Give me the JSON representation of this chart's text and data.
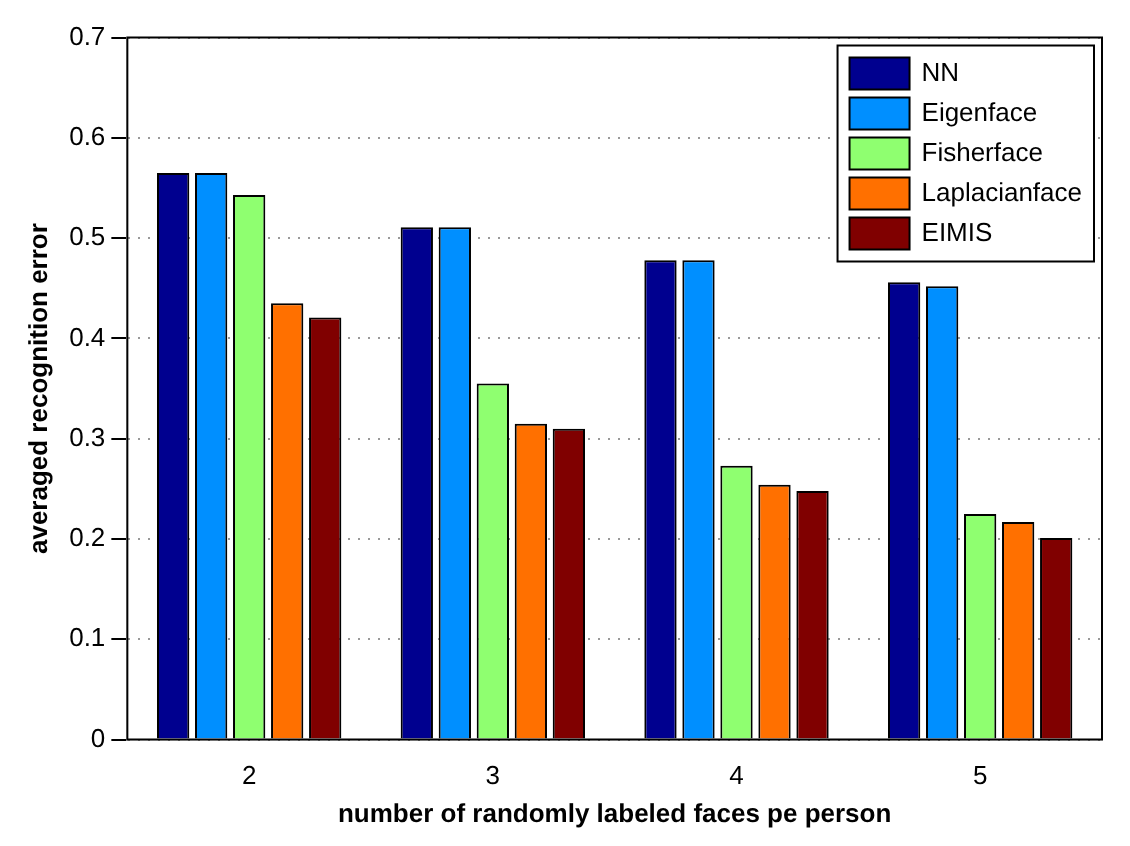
{
  "chart_data": {
    "type": "bar",
    "xlabel": "number of randomly labeled faces pe person",
    "ylabel": "averaged recognition error",
    "categories": [
      "2",
      "3",
      "4",
      "5"
    ],
    "series": [
      {
        "name": "NN",
        "color": "#00008f",
        "values": [
          0.565,
          0.511,
          0.478,
          0.456
        ]
      },
      {
        "name": "Eigenface",
        "color": "#008fff",
        "values": [
          0.565,
          0.511,
          0.478,
          0.452
        ]
      },
      {
        "name": "Fisherface",
        "color": "#8fff70",
        "values": [
          0.543,
          0.355,
          0.273,
          0.225
        ]
      },
      {
        "name": "Laplacianface",
        "color": "#ff7000",
        "values": [
          0.435,
          0.315,
          0.254,
          0.217
        ]
      },
      {
        "name": "EIMIS",
        "color": "#800000",
        "values": [
          0.421,
          0.31,
          0.248,
          0.201
        ]
      }
    ],
    "ylim": [
      0,
      0.7
    ],
    "yticks": [
      0,
      0.1,
      0.2,
      0.3,
      0.4,
      0.5,
      0.6,
      0.7
    ],
    "grid": "y",
    "legend": "top right"
  }
}
